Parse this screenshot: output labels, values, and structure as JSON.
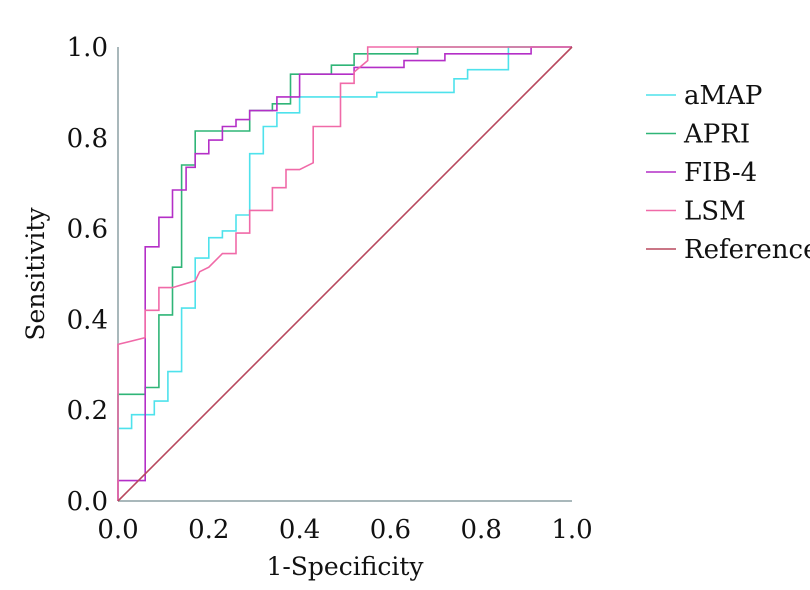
{
  "chart_data": {
    "type": "line",
    "xlabel": "1-Specificity",
    "ylabel": "Sensitivity",
    "xlim": [
      0,
      1
    ],
    "ylim": [
      0,
      1
    ],
    "x_ticks": [
      "0.0",
      "0.2",
      "0.4",
      "0.6",
      "0.8",
      "1.0"
    ],
    "y_ticks": [
      "0.0",
      "0.2",
      "0.4",
      "0.6",
      "0.8",
      "1.0"
    ],
    "grid": false,
    "legend_position": "right",
    "axis_color": "#a9b8bb",
    "series": [
      {
        "name": "aMAP",
        "color": "#4ee2ec",
        "step": true,
        "points": [
          [
            0,
            0
          ],
          [
            0,
            0.16
          ],
          [
            0.03,
            0.16
          ],
          [
            0.03,
            0.19
          ],
          [
            0.08,
            0.19
          ],
          [
            0.08,
            0.22
          ],
          [
            0.11,
            0.22
          ],
          [
            0.11,
            0.285
          ],
          [
            0.14,
            0.285
          ],
          [
            0.14,
            0.425
          ],
          [
            0.17,
            0.425
          ],
          [
            0.17,
            0.535
          ],
          [
            0.2,
            0.535
          ],
          [
            0.2,
            0.58
          ],
          [
            0.23,
            0.58
          ],
          [
            0.23,
            0.595
          ],
          [
            0.26,
            0.595
          ],
          [
            0.26,
            0.63
          ],
          [
            0.29,
            0.63
          ],
          [
            0.29,
            0.765
          ],
          [
            0.32,
            0.765
          ],
          [
            0.32,
            0.825
          ],
          [
            0.35,
            0.825
          ],
          [
            0.35,
            0.855
          ],
          [
            0.4,
            0.855
          ],
          [
            0.4,
            0.89
          ],
          [
            0.57,
            0.89
          ],
          [
            0.57,
            0.9
          ],
          [
            0.74,
            0.9
          ],
          [
            0.74,
            0.93
          ],
          [
            0.77,
            0.93
          ],
          [
            0.77,
            0.95
          ],
          [
            0.86,
            0.95
          ],
          [
            0.86,
            1.0
          ],
          [
            1.0,
            1.0
          ]
        ]
      },
      {
        "name": "APRI",
        "color": "#2fb577",
        "step": true,
        "points": [
          [
            0,
            0
          ],
          [
            0,
            0.235
          ],
          [
            0.06,
            0.235
          ],
          [
            0.06,
            0.25
          ],
          [
            0.09,
            0.25
          ],
          [
            0.09,
            0.41
          ],
          [
            0.12,
            0.41
          ],
          [
            0.12,
            0.515
          ],
          [
            0.14,
            0.515
          ],
          [
            0.14,
            0.74
          ],
          [
            0.17,
            0.74
          ],
          [
            0.17,
            0.815
          ],
          [
            0.29,
            0.815
          ],
          [
            0.29,
            0.86
          ],
          [
            0.34,
            0.86
          ],
          [
            0.34,
            0.875
          ],
          [
            0.38,
            0.875
          ],
          [
            0.38,
            0.94
          ],
          [
            0.47,
            0.94
          ],
          [
            0.47,
            0.96
          ],
          [
            0.52,
            0.96
          ],
          [
            0.52,
            0.985
          ],
          [
            0.66,
            0.985
          ],
          [
            0.66,
            1.0
          ],
          [
            1.0,
            1.0
          ]
        ]
      },
      {
        "name": "FIB-4",
        "color": "#b42fc7",
        "step": true,
        "points": [
          [
            0,
            0
          ],
          [
            0,
            0.045
          ],
          [
            0.06,
            0.045
          ],
          [
            0.06,
            0.56
          ],
          [
            0.09,
            0.56
          ],
          [
            0.09,
            0.625
          ],
          [
            0.12,
            0.625
          ],
          [
            0.12,
            0.685
          ],
          [
            0.15,
            0.685
          ],
          [
            0.15,
            0.735
          ],
          [
            0.17,
            0.735
          ],
          [
            0.17,
            0.765
          ],
          [
            0.2,
            0.765
          ],
          [
            0.2,
            0.795
          ],
          [
            0.23,
            0.795
          ],
          [
            0.23,
            0.825
          ],
          [
            0.26,
            0.825
          ],
          [
            0.26,
            0.84
          ],
          [
            0.29,
            0.84
          ],
          [
            0.29,
            0.86
          ],
          [
            0.35,
            0.86
          ],
          [
            0.35,
            0.89
          ],
          [
            0.4,
            0.89
          ],
          [
            0.4,
            0.94
          ],
          [
            0.52,
            0.94
          ],
          [
            0.52,
            0.955
          ],
          [
            0.63,
            0.955
          ],
          [
            0.63,
            0.97
          ],
          [
            0.72,
            0.97
          ],
          [
            0.72,
            0.985
          ],
          [
            0.91,
            0.985
          ],
          [
            0.91,
            1.0
          ],
          [
            1.0,
            1.0
          ]
        ]
      },
      {
        "name": "LSM",
        "color": "#f06aa8",
        "step": false,
        "points": [
          [
            0,
            0
          ],
          [
            0,
            0.345
          ],
          [
            0.06,
            0.36
          ],
          [
            0.06,
            0.42
          ],
          [
            0.09,
            0.42
          ],
          [
            0.09,
            0.47
          ],
          [
            0.12,
            0.47
          ],
          [
            0.17,
            0.485
          ],
          [
            0.18,
            0.505
          ],
          [
            0.2,
            0.515
          ],
          [
            0.23,
            0.545
          ],
          [
            0.26,
            0.545
          ],
          [
            0.26,
            0.59
          ],
          [
            0.29,
            0.59
          ],
          [
            0.29,
            0.64
          ],
          [
            0.34,
            0.64
          ],
          [
            0.34,
            0.69
          ],
          [
            0.37,
            0.69
          ],
          [
            0.37,
            0.73
          ],
          [
            0.4,
            0.73
          ],
          [
            0.43,
            0.745
          ],
          [
            0.43,
            0.825
          ],
          [
            0.49,
            0.825
          ],
          [
            0.49,
            0.92
          ],
          [
            0.52,
            0.92
          ],
          [
            0.52,
            0.945
          ],
          [
            0.55,
            0.97
          ],
          [
            0.55,
            1.0
          ],
          [
            1.0,
            1.0
          ]
        ]
      },
      {
        "name": "Reference",
        "color": "#b8485e",
        "step": false,
        "points": [
          [
            0,
            0
          ],
          [
            1,
            1
          ]
        ]
      }
    ]
  }
}
